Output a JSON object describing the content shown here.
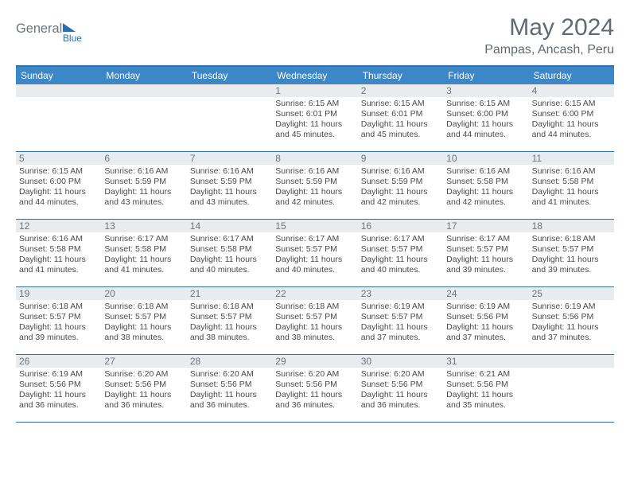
{
  "brand": {
    "left": "General",
    "right": "Blue"
  },
  "title": "May 2024",
  "location": "Pampas, Ancash, Peru",
  "colors": {
    "headerBlue": "#3b87c8",
    "borderBlue": "#2e6da4",
    "dateBg": "#e9ecef",
    "dateText": "#6c757d",
    "bodyText": "#4a4a4a",
    "titleGray": "#5f6a72",
    "logoGray": "#6b7680",
    "logoBlue": "#2a6fb0"
  },
  "dayNames": [
    "Sunday",
    "Monday",
    "Tuesday",
    "Wednesday",
    "Thursday",
    "Friday",
    "Saturday"
  ],
  "weeks": [
    [
      {
        "date": "",
        "lines": []
      },
      {
        "date": "",
        "lines": []
      },
      {
        "date": "",
        "lines": []
      },
      {
        "date": "1",
        "lines": [
          "Sunrise: 6:15 AM",
          "Sunset: 6:01 PM",
          "Daylight: 11 hours and 45 minutes."
        ]
      },
      {
        "date": "2",
        "lines": [
          "Sunrise: 6:15 AM",
          "Sunset: 6:01 PM",
          "Daylight: 11 hours and 45 minutes."
        ]
      },
      {
        "date": "3",
        "lines": [
          "Sunrise: 6:15 AM",
          "Sunset: 6:00 PM",
          "Daylight: 11 hours and 44 minutes."
        ]
      },
      {
        "date": "4",
        "lines": [
          "Sunrise: 6:15 AM",
          "Sunset: 6:00 PM",
          "Daylight: 11 hours and 44 minutes."
        ]
      }
    ],
    [
      {
        "date": "5",
        "lines": [
          "Sunrise: 6:15 AM",
          "Sunset: 6:00 PM",
          "Daylight: 11 hours and 44 minutes."
        ]
      },
      {
        "date": "6",
        "lines": [
          "Sunrise: 6:16 AM",
          "Sunset: 5:59 PM",
          "Daylight: 11 hours and 43 minutes."
        ]
      },
      {
        "date": "7",
        "lines": [
          "Sunrise: 6:16 AM",
          "Sunset: 5:59 PM",
          "Daylight: 11 hours and 43 minutes."
        ]
      },
      {
        "date": "8",
        "lines": [
          "Sunrise: 6:16 AM",
          "Sunset: 5:59 PM",
          "Daylight: 11 hours and 42 minutes."
        ]
      },
      {
        "date": "9",
        "lines": [
          "Sunrise: 6:16 AM",
          "Sunset: 5:59 PM",
          "Daylight: 11 hours and 42 minutes."
        ]
      },
      {
        "date": "10",
        "lines": [
          "Sunrise: 6:16 AM",
          "Sunset: 5:58 PM",
          "Daylight: 11 hours and 42 minutes."
        ]
      },
      {
        "date": "11",
        "lines": [
          "Sunrise: 6:16 AM",
          "Sunset: 5:58 PM",
          "Daylight: 11 hours and 41 minutes."
        ]
      }
    ],
    [
      {
        "date": "12",
        "lines": [
          "Sunrise: 6:16 AM",
          "Sunset: 5:58 PM",
          "Daylight: 11 hours and 41 minutes."
        ]
      },
      {
        "date": "13",
        "lines": [
          "Sunrise: 6:17 AM",
          "Sunset: 5:58 PM",
          "Daylight: 11 hours and 41 minutes."
        ]
      },
      {
        "date": "14",
        "lines": [
          "Sunrise: 6:17 AM",
          "Sunset: 5:58 PM",
          "Daylight: 11 hours and 40 minutes."
        ]
      },
      {
        "date": "15",
        "lines": [
          "Sunrise: 6:17 AM",
          "Sunset: 5:57 PM",
          "Daylight: 11 hours and 40 minutes."
        ]
      },
      {
        "date": "16",
        "lines": [
          "Sunrise: 6:17 AM",
          "Sunset: 5:57 PM",
          "Daylight: 11 hours and 40 minutes."
        ]
      },
      {
        "date": "17",
        "lines": [
          "Sunrise: 6:17 AM",
          "Sunset: 5:57 PM",
          "Daylight: 11 hours and 39 minutes."
        ]
      },
      {
        "date": "18",
        "lines": [
          "Sunrise: 6:18 AM",
          "Sunset: 5:57 PM",
          "Daylight: 11 hours and 39 minutes."
        ]
      }
    ],
    [
      {
        "date": "19",
        "lines": [
          "Sunrise: 6:18 AM",
          "Sunset: 5:57 PM",
          "Daylight: 11 hours and 39 minutes."
        ]
      },
      {
        "date": "20",
        "lines": [
          "Sunrise: 6:18 AM",
          "Sunset: 5:57 PM",
          "Daylight: 11 hours and 38 minutes."
        ]
      },
      {
        "date": "21",
        "lines": [
          "Sunrise: 6:18 AM",
          "Sunset: 5:57 PM",
          "Daylight: 11 hours and 38 minutes."
        ]
      },
      {
        "date": "22",
        "lines": [
          "Sunrise: 6:18 AM",
          "Sunset: 5:57 PM",
          "Daylight: 11 hours and 38 minutes."
        ]
      },
      {
        "date": "23",
        "lines": [
          "Sunrise: 6:19 AM",
          "Sunset: 5:57 PM",
          "Daylight: 11 hours and 37 minutes."
        ]
      },
      {
        "date": "24",
        "lines": [
          "Sunrise: 6:19 AM",
          "Sunset: 5:56 PM",
          "Daylight: 11 hours and 37 minutes."
        ]
      },
      {
        "date": "25",
        "lines": [
          "Sunrise: 6:19 AM",
          "Sunset: 5:56 PM",
          "Daylight: 11 hours and 37 minutes."
        ]
      }
    ],
    [
      {
        "date": "26",
        "lines": [
          "Sunrise: 6:19 AM",
          "Sunset: 5:56 PM",
          "Daylight: 11 hours and 36 minutes."
        ]
      },
      {
        "date": "27",
        "lines": [
          "Sunrise: 6:20 AM",
          "Sunset: 5:56 PM",
          "Daylight: 11 hours and 36 minutes."
        ]
      },
      {
        "date": "28",
        "lines": [
          "Sunrise: 6:20 AM",
          "Sunset: 5:56 PM",
          "Daylight: 11 hours and 36 minutes."
        ]
      },
      {
        "date": "29",
        "lines": [
          "Sunrise: 6:20 AM",
          "Sunset: 5:56 PM",
          "Daylight: 11 hours and 36 minutes."
        ]
      },
      {
        "date": "30",
        "lines": [
          "Sunrise: 6:20 AM",
          "Sunset: 5:56 PM",
          "Daylight: 11 hours and 36 minutes."
        ]
      },
      {
        "date": "31",
        "lines": [
          "Sunrise: 6:21 AM",
          "Sunset: 5:56 PM",
          "Daylight: 11 hours and 35 minutes."
        ]
      },
      {
        "date": "",
        "lines": []
      }
    ]
  ]
}
